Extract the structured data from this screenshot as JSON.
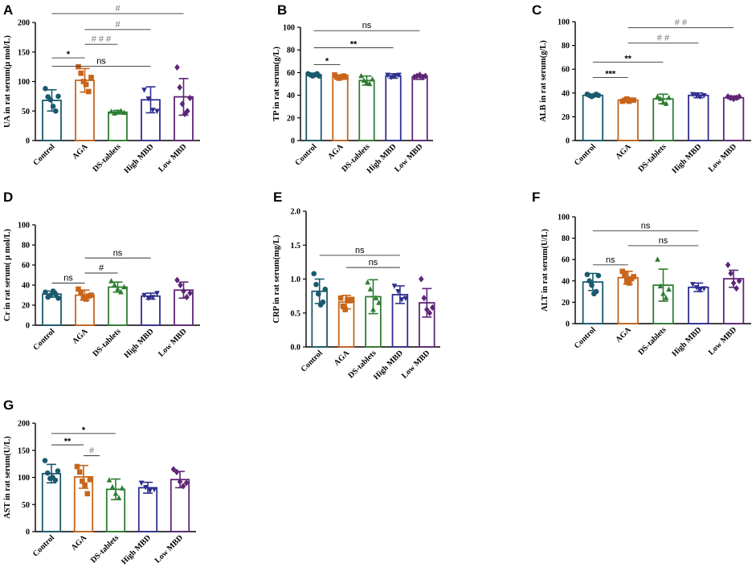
{
  "chart_data": [
    {
      "panel": "A",
      "type": "bar",
      "ylabel": "UA in rat serum(μ mol/L)",
      "ylim": [
        0,
        200
      ],
      "yticks": [
        0,
        50,
        100,
        150,
        200
      ],
      "categories": [
        "Control",
        "AGA",
        "DS-tablets",
        "High MBD",
        "Low MBD"
      ],
      "values": [
        68,
        102,
        48,
        69,
        74
      ],
      "errors": [
        18,
        20,
        3,
        22,
        31
      ],
      "points": [
        [
          88,
          74,
          69,
          58,
          50,
          75
        ],
        [
          125,
          114,
          100,
          95,
          83,
          107
        ],
        [
          49,
          46,
          48,
          50,
          47
        ],
        [
          86,
          71,
          52,
          50
        ],
        [
          124,
          90,
          62,
          45,
          50,
          72
        ]
      ],
      "annotations": [
        {
          "from": 0,
          "to": 4,
          "y": 215,
          "text": "#",
          "color": "#777777"
        },
        {
          "from": 1,
          "to": 3,
          "y": 188,
          "text": "#",
          "color": "#777777"
        },
        {
          "from": 1,
          "to": 2,
          "y": 163,
          "text": "# # #",
          "color": "#777777"
        },
        {
          "from": 0,
          "to": 1,
          "y": 140,
          "text": "*",
          "color": "#000000"
        },
        {
          "from": 0,
          "to": 3,
          "y": 126,
          "text": "ns",
          "color": "#000000"
        }
      ]
    },
    {
      "panel": "B",
      "type": "bar",
      "ylabel": "TP in rat serum(g/L)",
      "ylim": [
        0,
        100
      ],
      "yticks": [
        0,
        20,
        40,
        60,
        80,
        100
      ],
      "categories": [
        "Control",
        "AGA",
        "DS-tablets",
        "High MBD",
        "Low MBD"
      ],
      "values": [
        58,
        56,
        53,
        57,
        56
      ],
      "errors": [
        1.5,
        2,
        4,
        2,
        2
      ],
      "points": [
        [
          59,
          58,
          57,
          58,
          59,
          57
        ],
        [
          58,
          56,
          55,
          56,
          57,
          56
        ],
        [
          57,
          53,
          51,
          50,
          54
        ],
        [
          58,
          56,
          57,
          58
        ],
        [
          56,
          57,
          58,
          56,
          57
        ]
      ],
      "annotations": [
        {
          "from": 0,
          "to": 4,
          "y": 97,
          "text": "ns",
          "color": "#000000"
        },
        {
          "from": 0,
          "to": 3,
          "y": 82,
          "text": "**",
          "color": "#000000"
        },
        {
          "from": 0,
          "to": 1,
          "y": 67,
          "text": "*",
          "color": "#000000"
        }
      ]
    },
    {
      "panel": "C",
      "type": "bar",
      "ylabel": "ALB in rat serum(g/L)",
      "ylim": [
        0,
        100
      ],
      "yticks": [
        0,
        20,
        40,
        60,
        80,
        100
      ],
      "categories": [
        "Control",
        "AGA",
        "DS-tablets",
        "High MBD",
        "Low MBD"
      ],
      "values": [
        38,
        34,
        35,
        38,
        36
      ],
      "errors": [
        1,
        1.5,
        4,
        2,
        1.5
      ],
      "points": [
        [
          39,
          38,
          37,
          38,
          39,
          38
        ],
        [
          33,
          34,
          35,
          33,
          34,
          34
        ],
        [
          37,
          35,
          32,
          31,
          36
        ],
        [
          39,
          38,
          37,
          38
        ],
        [
          37,
          36,
          35,
          36,
          37
        ]
      ],
      "annotations": [
        {
          "from": 1,
          "to": 4,
          "y": 95,
          "text": "# #",
          "color": "#777777"
        },
        {
          "from": 1,
          "to": 3,
          "y": 82,
          "text": "# #",
          "color": "#777777"
        },
        {
          "from": 0,
          "to": 2,
          "y": 66,
          "text": "**",
          "color": "#000000"
        },
        {
          "from": 0,
          "to": 1,
          "y": 53,
          "text": "***",
          "color": "#000000"
        }
      ]
    },
    {
      "panel": "D",
      "type": "bar",
      "ylabel": "Cr in rat serum( μ mol/L)",
      "ylim": [
        0,
        100
      ],
      "yticks": [
        0,
        20,
        40,
        60,
        80,
        100
      ],
      "categories": [
        "Control",
        "AGA",
        "DS-tablets",
        "High MBD",
        "Low MBD"
      ],
      "values": [
        31,
        30,
        38,
        29,
        35
      ],
      "errors": [
        3,
        5,
        5,
        3,
        8
      ],
      "points": [
        [
          33,
          28,
          30,
          34,
          31,
          27
        ],
        [
          36,
          33,
          28,
          26,
          29,
          30
        ],
        [
          44,
          40,
          36,
          33,
          38
        ],
        [
          30,
          27,
          28,
          32
        ],
        [
          45,
          40,
          34,
          28,
          32
        ]
      ],
      "annotations": [
        {
          "from": 1,
          "to": 3,
          "y": 67,
          "text": "ns",
          "color": "#000000"
        },
        {
          "from": 1,
          "to": 2,
          "y": 52,
          "text": "#",
          "color": "#000000"
        },
        {
          "from": 0,
          "to": 1,
          "y": 42,
          "text": "ns",
          "color": "#000000"
        }
      ]
    },
    {
      "panel": "E",
      "type": "bar",
      "ylabel": "CRP in rat serum(mg/L)",
      "ylim": [
        0,
        2.0
      ],
      "yticks": [
        0.0,
        0.5,
        1.0,
        1.5,
        2.0
      ],
      "categories": [
        "Control",
        "AGA",
        "DS-tablets",
        "High MBD",
        "Low MBD"
      ],
      "values": [
        0.82,
        0.66,
        0.74,
        0.77,
        0.65
      ],
      "errors": [
        0.18,
        0.1,
        0.25,
        0.13,
        0.21
      ],
      "points": [
        [
          1.08,
          0.92,
          0.78,
          0.62,
          0.66,
          0.85
        ],
        [
          0.72,
          0.6,
          0.55,
          0.7,
          0.68,
          0.7
        ],
        [
          0.95,
          0.85,
          0.55,
          0.72,
          0.65
        ],
        [
          0.9,
          0.82,
          0.7,
          0.72
        ],
        [
          1.0,
          0.72,
          0.55,
          0.5,
          0.58
        ]
      ],
      "annotations": [
        {
          "from": 0,
          "to": 3,
          "y": 1.35,
          "text": "ns",
          "color": "#000000"
        },
        {
          "from": 1,
          "to": 3,
          "y": 1.17,
          "text": "ns",
          "color": "#000000"
        }
      ]
    },
    {
      "panel": "F",
      "type": "bar",
      "ylabel": "ALT in rat serum(U/L)",
      "ylim": [
        0,
        100
      ],
      "yticks": [
        0,
        20,
        40,
        60,
        80,
        100
      ],
      "categories": [
        "Control",
        "AGA",
        "DS-tablets",
        "High MBD",
        "Low MBD"
      ],
      "values": [
        39,
        43,
        36,
        34,
        42
      ],
      "errors": [
        8,
        6,
        15,
        4,
        8
      ],
      "points": [
        [
          46,
          40,
          36,
          28,
          30,
          45
        ],
        [
          49,
          46,
          40,
          38,
          42,
          44
        ],
        [
          60,
          35,
          28,
          24,
          32
        ],
        [
          37,
          34,
          32,
          33
        ],
        [
          55,
          47,
          38,
          33,
          40
        ]
      ],
      "annotations": [
        {
          "from": 0,
          "to": 3,
          "y": 87,
          "text": "ns",
          "color": "#000000"
        },
        {
          "from": 1,
          "to": 3,
          "y": 73,
          "text": "ns",
          "color": "#000000"
        },
        {
          "from": 0,
          "to": 1,
          "y": 55,
          "text": "ns",
          "color": "#000000"
        }
      ]
    },
    {
      "panel": "G",
      "type": "bar",
      "ylabel": "AST in rat serum(U/L)",
      "ylim": [
        0,
        200
      ],
      "yticks": [
        0,
        50,
        100,
        150,
        200
      ],
      "categories": [
        "Control",
        "AGA",
        "DS-tablets",
        "High MBD",
        "Low MBD"
      ],
      "values": [
        107,
        101,
        78,
        81,
        96
      ],
      "errors": [
        17,
        21,
        19,
        10,
        15
      ],
      "points": [
        [
          131,
          108,
          98,
          100,
          95,
          112
        ],
        [
          120,
          110,
          93,
          86,
          70,
          96
        ],
        [
          95,
          82,
          70,
          62,
          80
        ],
        [
          90,
          82,
          76,
          78
        ],
        [
          115,
          110,
          92,
          84,
          90
        ]
      ],
      "annotations": [
        {
          "from": 0,
          "to": 2,
          "y": 181,
          "text": "*",
          "color": "#000000"
        },
        {
          "from": 0,
          "to": 1,
          "y": 160,
          "text": "**",
          "color": "#000000"
        },
        {
          "from": 1,
          "to": 1.5,
          "y": 140,
          "text": "#",
          "color": "#777777"
        }
      ]
    }
  ],
  "group_colors": [
    "#1a5a6e",
    "#c8651b",
    "#2e7d32",
    "#2f2f91",
    "#5e2577"
  ],
  "group_markers": [
    "circle",
    "square",
    "triangle",
    "triangle-down",
    "diamond"
  ]
}
